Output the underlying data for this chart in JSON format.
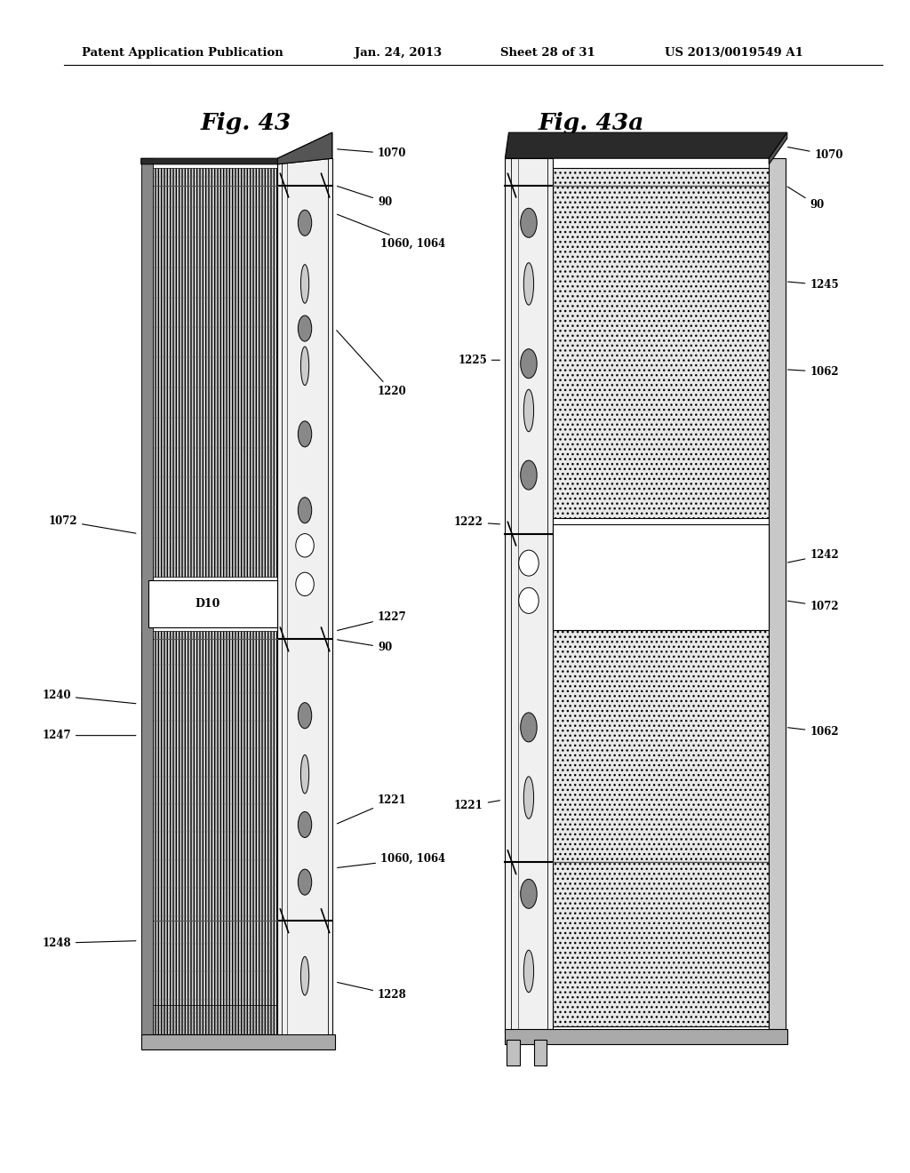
{
  "bg_color": "#ffffff",
  "header_text": "Patent Application Publication",
  "header_date": "Jan. 24, 2013",
  "header_sheet": "Sheet 28 of 31",
  "header_patent": "US 2013/0019549 A1",
  "fig43_title": "Fig. 43",
  "fig43a_title": "Fig. 43a"
}
